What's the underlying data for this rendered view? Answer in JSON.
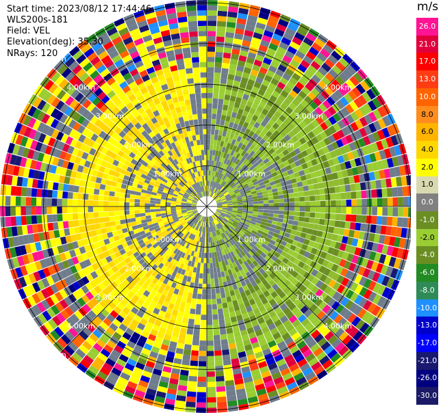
{
  "header": {
    "start_time": "Start time: 2023/08/12 17:44:46",
    "instrument": "WLS200s-181",
    "field": "Field: VEL",
    "elevation": "Elevation(deg): 35.30",
    "nrays": "NRays: 120"
  },
  "colorbar": {
    "unit": "m/s",
    "ticks": [
      "26.0",
      "21.0",
      "17.0",
      "13.0",
      "10.0",
      "8.0",
      "6.0",
      "4.0",
      "2.0",
      "1.0",
      "0.0",
      "-1.0",
      "-2.0",
      "-4.0",
      "-6.0",
      "-8.0",
      "-10.0",
      "-13.0",
      "-17.0",
      "-21.0",
      "-26.0",
      "-30.0"
    ],
    "colors": [
      "#ff1493",
      "#e0003c",
      "#ff0000",
      "#ff3c14",
      "#ff6400",
      "#ff8c1e",
      "#ffb400",
      "#ffd700",
      "#ffff00",
      "#d9d9b0",
      "#808080",
      "#6b8e23",
      "#9acd32",
      "#6b8e23",
      "#228b22",
      "#2e8b57",
      "#1e90ff",
      "#0000cd",
      "#0000ff",
      "#191970",
      "#000080",
      "#1a1a66"
    ]
  },
  "range_labels": [
    "1.00km",
    "2.00km",
    "3.00km",
    "4.00km",
    "5.00km"
  ],
  "legend": {
    "range_rings_km": [
      1,
      2,
      3,
      4,
      5
    ],
    "spokes": 8
  }
}
